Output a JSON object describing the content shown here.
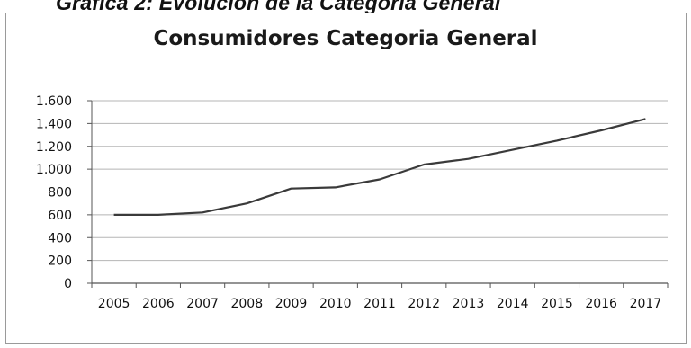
{
  "caption": "Gráfica 2: Evolución de la Categoría General",
  "chart_data": {
    "type": "line",
    "title": "Consumidores Categoria General",
    "xlabel": "",
    "ylabel": "",
    "categories": [
      "2005",
      "2006",
      "2007",
      "2008",
      "2009",
      "2010",
      "2011",
      "2012",
      "2013",
      "2014",
      "2015",
      "2016",
      "2017"
    ],
    "series": [
      {
        "values": [
          600,
          600,
          620,
          700,
          830,
          840,
          910,
          1040,
          1090,
          1170,
          1250,
          1340,
          1440
        ]
      }
    ],
    "ylim": [
      0,
      1600
    ],
    "y_ticks": [
      0,
      200,
      400,
      600,
      800,
      1000,
      1200,
      1400,
      1600
    ],
    "y_tick_labels": [
      "0",
      "200",
      "400",
      "600",
      "800",
      "1.000",
      "1.200",
      "1.400",
      "1.600"
    ],
    "grid": true,
    "legend": "none",
    "colors": {
      "line": "#3a3a3a",
      "grid": "#b5b5b5",
      "axis": "#555555"
    }
  }
}
